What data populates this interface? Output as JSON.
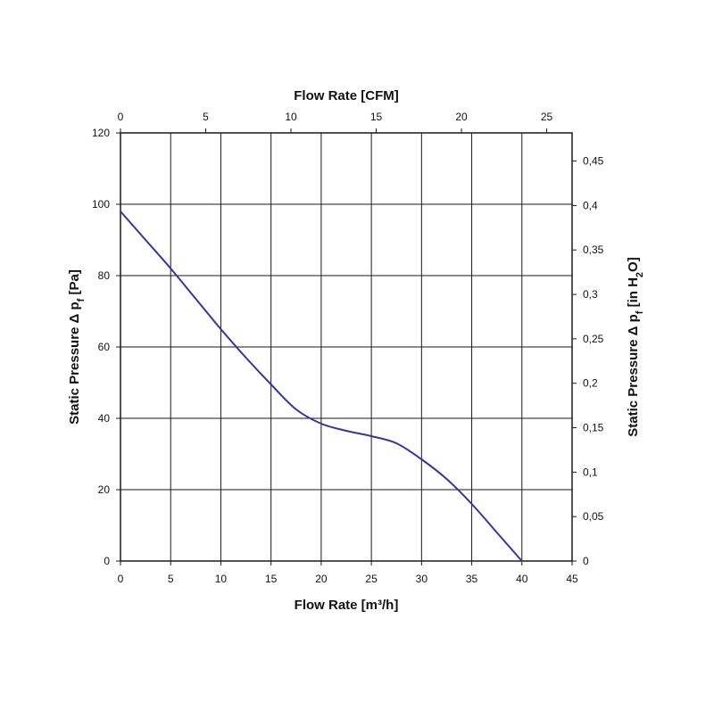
{
  "chart_data": {
    "type": "line",
    "x_axis_bottom": {
      "label": "Flow Rate [m³/h]",
      "ticks": [
        0,
        5,
        10,
        15,
        20,
        25,
        30,
        35,
        40,
        45
      ],
      "tick_labels": [
        "0",
        "5",
        "10",
        "15",
        "20",
        "25",
        "30",
        "35",
        "40",
        "45"
      ],
      "range": [
        0,
        45
      ]
    },
    "x_axis_top": {
      "label": "Flow Rate [CFM]",
      "ticks": [
        0,
        5,
        10,
        15,
        20,
        25
      ],
      "tick_labels": [
        "0",
        "5",
        "10",
        "15",
        "20",
        "25"
      ],
      "range": [
        0,
        26.49
      ]
    },
    "y_axis_left": {
      "label": "Static Pressure Δ pf [Pa]",
      "label_main": "Static Pressure Δ p",
      "label_sub": "f",
      "label_unit": " [Pa]",
      "ticks": [
        0,
        20,
        40,
        60,
        80,
        100,
        120
      ],
      "tick_labels": [
        "0",
        "20",
        "40",
        "60",
        "80",
        "100",
        "120"
      ],
      "range": [
        0,
        120
      ]
    },
    "y_axis_right": {
      "label": "Static Pressure Δ pf [in H2O]",
      "label_main": "Static Pressure Δ p",
      "label_sub": "f",
      "label_unit_pre": " [in H",
      "label_unit_sub": "2",
      "label_unit_post": "O]",
      "ticks": [
        0,
        0.05,
        0.1,
        0.15,
        0.2,
        0.25,
        0.3,
        0.35,
        0.4,
        0.45
      ],
      "tick_labels": [
        "0",
        "0,05",
        "0,1",
        "0,15",
        "0,2",
        "0,25",
        "0,3",
        "0,35",
        "0,4",
        "0,45"
      ],
      "range": [
        0,
        0.4817
      ]
    },
    "grid": true,
    "series": [
      {
        "color": "#3333aa",
        "x": [
          0,
          2.5,
          5,
          7.5,
          10,
          12.5,
          15,
          17.5,
          20,
          22.5,
          25,
          27.5,
          30,
          32.5,
          35,
          37.5,
          40
        ],
        "y": [
          98,
          90,
          82,
          73.5,
          65,
          57,
          49.5,
          42.5,
          38.5,
          36.5,
          35,
          33,
          28.5,
          23,
          16,
          8,
          0
        ]
      }
    ]
  }
}
